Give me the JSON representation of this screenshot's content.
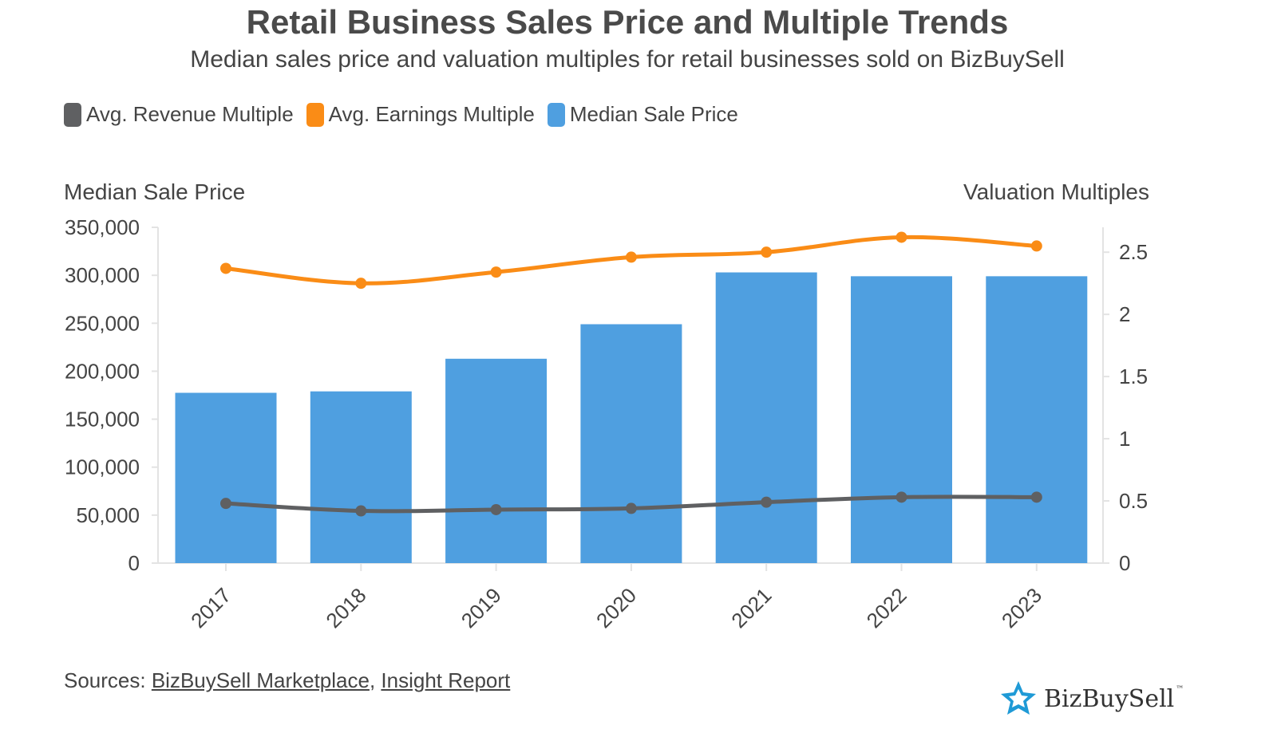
{
  "title": "Retail Business Sales Price and Multiple Trends",
  "subtitle": "Median sales price and valuation multiples for retail businesses sold on BizBuySell",
  "legend": [
    {
      "label": "Avg. Revenue Multiple",
      "color": "#5f6062"
    },
    {
      "label": "Avg. Earnings Multiple",
      "color": "#fa8c16"
    },
    {
      "label": "Median Sale Price",
      "color": "#4f9fe0"
    }
  ],
  "sources": {
    "prefix": "Sources: ",
    "link1": "BizBuySell Marketplace",
    "sep": ", ",
    "link2": "Insight Report"
  },
  "logo": {
    "text": "BizBuySell",
    "tm": "™",
    "icon": "star-logo-icon"
  },
  "chart_data": {
    "type": "bar",
    "categories": [
      "2017",
      "2018",
      "2019",
      "2020",
      "2021",
      "2022",
      "2023"
    ],
    "y_left_label": "Median Sale Price",
    "y_right_label": "Valuation Multiples",
    "y_left_range": [
      0,
      350000
    ],
    "y_left_ticks": [
      "350,000",
      "300,000",
      "250,000",
      "200,000",
      "150,000",
      "100,000",
      "50,000",
      "0"
    ],
    "y_left_tick_values": [
      350000,
      300000,
      250000,
      200000,
      150000,
      100000,
      50000,
      0
    ],
    "y_right_range": [
      0,
      2.7
    ],
    "y_right_ticks": [
      "2.5",
      "2",
      "1.5",
      "1",
      "0.5",
      "0"
    ],
    "y_right_tick_values": [
      2.5,
      2,
      1.5,
      1,
      0.5,
      0
    ],
    "series": [
      {
        "name": "Median Sale Price",
        "type": "bar",
        "axis": "left",
        "color": "#4f9fe0",
        "values": [
          177500,
          179000,
          213000,
          249000,
          303000,
          299000,
          299000
        ]
      },
      {
        "name": "Avg. Earnings Multiple",
        "type": "line",
        "axis": "right",
        "color": "#fa8c16",
        "values": [
          2.37,
          2.25,
          2.34,
          2.46,
          2.5,
          2.62,
          2.55
        ]
      },
      {
        "name": "Avg. Revenue Multiple",
        "type": "line",
        "axis": "right",
        "color": "#5f6062",
        "values": [
          0.48,
          0.42,
          0.43,
          0.44,
          0.49,
          0.53,
          0.53
        ]
      }
    ],
    "grid": false
  }
}
